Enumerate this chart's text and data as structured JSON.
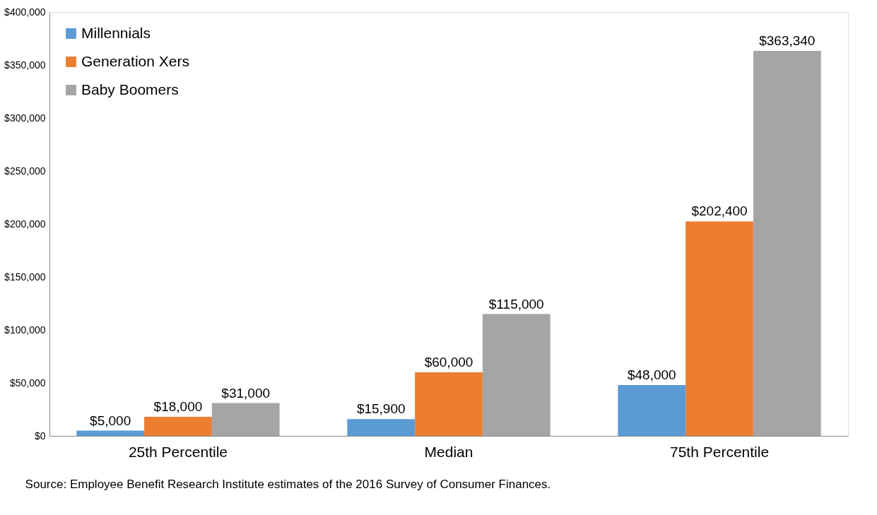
{
  "chart_data": {
    "type": "bar",
    "categories": [
      "25th Percentile",
      "Median",
      "75th Percentile"
    ],
    "series": [
      {
        "name": "Millennials",
        "color": "#5b9bd5",
        "values": [
          5000,
          15900,
          48000
        ],
        "value_labels": [
          "$5,000",
          "$15,900",
          "$48,000"
        ]
      },
      {
        "name": "Generation Xers",
        "color": "#ed7d31",
        "values": [
          18000,
          60000,
          202400
        ],
        "value_labels": [
          "$18,000",
          "$60,000",
          "$202,400"
        ]
      },
      {
        "name": "Baby Boomers",
        "color": "#a5a5a5",
        "values": [
          31000,
          115000,
          363340
        ],
        "value_labels": [
          "$31,000",
          "$115,000",
          "$363,340"
        ]
      }
    ],
    "ylim": [
      0,
      400000
    ],
    "yticks": [
      {
        "value": 0,
        "label": "$0"
      },
      {
        "value": 50000,
        "label": "$50,000"
      },
      {
        "value": 100000,
        "label": "$100,000"
      },
      {
        "value": 150000,
        "label": "$150,000"
      },
      {
        "value": 200000,
        "label": "$200,000"
      },
      {
        "value": 250000,
        "label": "$250,000"
      },
      {
        "value": 300000,
        "label": "$300,000"
      },
      {
        "value": 350000,
        "label": "$350,000"
      },
      {
        "value": 400000,
        "label": "$400,000"
      }
    ],
    "grid": false,
    "legend": "top left",
    "annotations": [
      "Source: Employee Benefit Research Institute estimates of the 2016 Survey of Consumer Finances."
    ]
  }
}
